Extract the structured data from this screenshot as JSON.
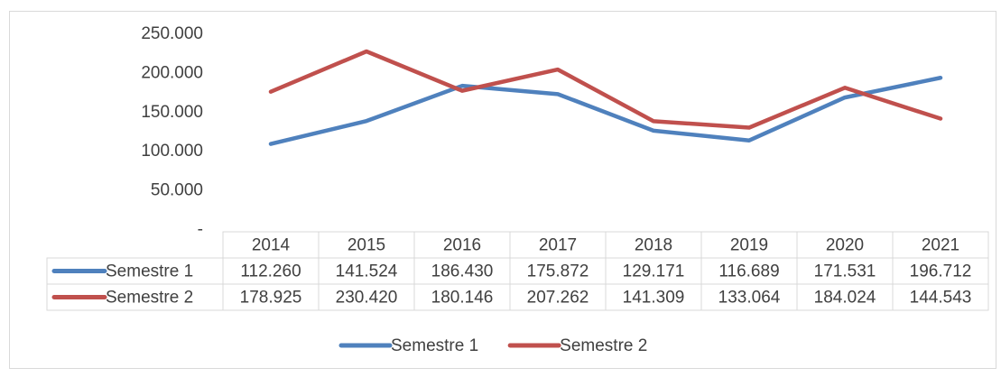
{
  "chart_data": {
    "type": "line",
    "categories": [
      "2014",
      "2015",
      "2016",
      "2017",
      "2018",
      "2019",
      "2020",
      "2021"
    ],
    "series": [
      {
        "name": "Semestre 1",
        "color": "#4f81bd",
        "values": [
          112260,
          141524,
          186430,
          175872,
          129171,
          116689,
          171531,
          196712
        ],
        "value_labels": [
          "112.260",
          "141.524",
          "186.430",
          "175.872",
          "129.171",
          "116.689",
          "171.531",
          "196.712"
        ]
      },
      {
        "name": "Semestre 2",
        "color": "#c0504d",
        "values": [
          178925,
          230420,
          180146,
          207262,
          141309,
          133064,
          184024,
          144543
        ],
        "value_labels": [
          "178.925",
          "230.420",
          "180.146",
          "207.262",
          "141.309",
          "133.064",
          "184.024",
          "144.543"
        ]
      }
    ],
    "ylim": [
      0,
      250000
    ],
    "yticks": [
      {
        "value": 0,
        "label": "-"
      },
      {
        "value": 50000,
        "label": "50.000"
      },
      {
        "value": 100000,
        "label": "100.000"
      },
      {
        "value": 150000,
        "label": "150.000"
      },
      {
        "value": 200000,
        "label": "200.000"
      },
      {
        "value": 250000,
        "label": "250.000"
      }
    ],
    "grid": false,
    "legend": "bottom"
  }
}
